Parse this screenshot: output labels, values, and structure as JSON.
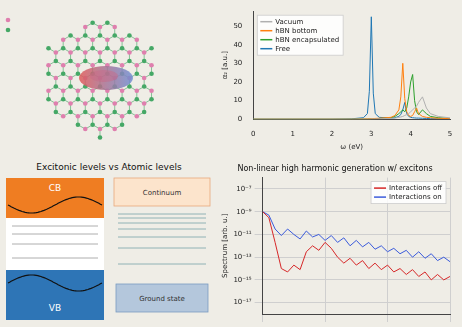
{
  "chart_data": [
    {
      "type": "line",
      "x_label": "ω (eV)",
      "y_label": "α₂ [a.u.]",
      "x": [
        0,
        0.5,
        1,
        1.5,
        2,
        2.5,
        2.8,
        2.9,
        2.95,
        3.0,
        3.05,
        3.1,
        3.2,
        3.5,
        3.6,
        3.7,
        3.75,
        3.8,
        3.85,
        3.9,
        3.95,
        4.0,
        4.05,
        4.1,
        4.15,
        4.2,
        4.3,
        4.4,
        4.5,
        4.7,
        5.0
      ],
      "xlim": [
        0,
        5
      ],
      "xticks": [
        0,
        1,
        2,
        3,
        4,
        5
      ],
      "ylim": [
        0,
        58
      ],
      "yticks": [
        0,
        10,
        20,
        30,
        40,
        50
      ],
      "grid": false,
      "legend": "upper left",
      "series": [
        {
          "name": "Vacuum",
          "color": "#b0b0b0",
          "values": [
            0,
            0,
            0,
            0,
            0,
            0,
            0,
            0,
            0,
            0.1,
            0.1,
            0.1,
            0.2,
            0.4,
            0.6,
            1,
            1.2,
            1.5,
            2,
            2.5,
            3,
            4,
            5,
            6,
            7,
            9,
            12,
            6,
            3,
            1.5,
            0.7
          ]
        },
        {
          "name": "hBN bottom",
          "color": "#ff7f0e",
          "values": [
            0,
            0,
            0,
            0,
            0,
            0,
            0.1,
            0.2,
            0.2,
            0.3,
            0.3,
            0.4,
            0.5,
            1,
            2,
            5,
            12,
            30,
            11,
            4,
            2,
            1.5,
            2,
            4,
            6,
            3,
            1.5,
            1,
            0.8,
            0.5,
            0.3
          ]
        },
        {
          "name": "hBN encapsulated",
          "color": "#2ca02c",
          "values": [
            0,
            0,
            0,
            0,
            0,
            0,
            0.1,
            0.1,
            0.2,
            0.2,
            0.2,
            0.3,
            0.4,
            0.8,
            1.5,
            3,
            4,
            5,
            4,
            6,
            12,
            20,
            24,
            10,
            4,
            2.5,
            5,
            3,
            1.5,
            0.8,
            0.4
          ]
        },
        {
          "name": "Free",
          "color": "#1f77b4",
          "values": [
            0,
            0,
            0,
            0,
            0,
            0.2,
            0.8,
            3,
            15,
            55,
            14,
            3,
            1,
            0.6,
            0.8,
            1.5,
            2.5,
            5,
            9,
            3,
            1.5,
            1,
            0.8,
            0.7,
            0.6,
            0.6,
            0.5,
            0.4,
            0.3,
            0.2,
            0.1
          ]
        }
      ]
    },
    {
      "type": "line",
      "title": "Non-linear high harmonic generation w/ excitons",
      "y_label": "Spectrum [arb. u.]",
      "x": [
        0,
        1,
        2,
        3,
        4,
        5,
        6,
        7,
        8,
        9,
        10,
        11,
        12,
        13,
        14,
        15,
        16,
        17,
        18,
        19,
        20,
        21,
        22,
        23,
        24,
        25,
        26,
        27,
        28,
        29,
        30
      ],
      "xlim": [
        0,
        30
      ],
      "xticks": [
        0,
        10,
        20,
        30
      ],
      "log": "y",
      "ylim": [
        1e-18,
        1e-06
      ],
      "yticks": [
        {
          "value": 1e-07,
          "label": "10⁻⁷"
        },
        {
          "value": 1e-09,
          "label": "10⁻⁹"
        },
        {
          "value": 1e-11,
          "label": "10⁻¹¹"
        },
        {
          "value": 1e-13,
          "label": "10⁻¹³"
        },
        {
          "value": 1e-15,
          "label": "10⁻¹⁵"
        },
        {
          "value": 1e-17,
          "label": "10⁻¹⁷"
        }
      ],
      "tick_labels": "y",
      "grid": true,
      "legend": "upper right",
      "series": [
        {
          "name": "Interactions off",
          "color": "#d62728",
          "values": [
            1e-09,
            3e-10,
            2e-12,
            1e-14,
            5e-15,
            2e-14,
            8e-15,
            3e-13,
            1e-12,
            4e-13,
            2e-12,
            6e-13,
            1e-13,
            3e-14,
            8e-14,
            2e-14,
            5e-14,
            1e-14,
            3e-14,
            8e-15,
            2e-14,
            5e-15,
            1e-14,
            3e-15,
            8e-15,
            2e-15,
            5e-15,
            1e-15,
            3e-15,
            1e-15,
            2e-15
          ]
        },
        {
          "name": "Interactions on",
          "color": "#3b5bdb",
          "values": [
            1e-09,
            5e-10,
            3e-11,
            8e-12,
            3e-11,
            1e-11,
            4e-12,
            2e-11,
            6e-12,
            1e-11,
            3e-12,
            8e-12,
            2e-12,
            5e-12,
            1e-12,
            3e-12,
            8e-13,
            2e-12,
            5e-13,
            1e-12,
            3e-13,
            6e-13,
            2e-13,
            4e-13,
            1e-13,
            3e-13,
            8e-14,
            2e-13,
            5e-14,
            1e-13,
            4e-14
          ]
        }
      ]
    }
  ],
  "diagram": {
    "title": "Excitonic levels vs Atomic levels",
    "left": {
      "top_label": "CB",
      "bottom_label": "VB"
    },
    "right": {
      "top_label": "Continuum",
      "bottom_label": "Ground state"
    }
  }
}
